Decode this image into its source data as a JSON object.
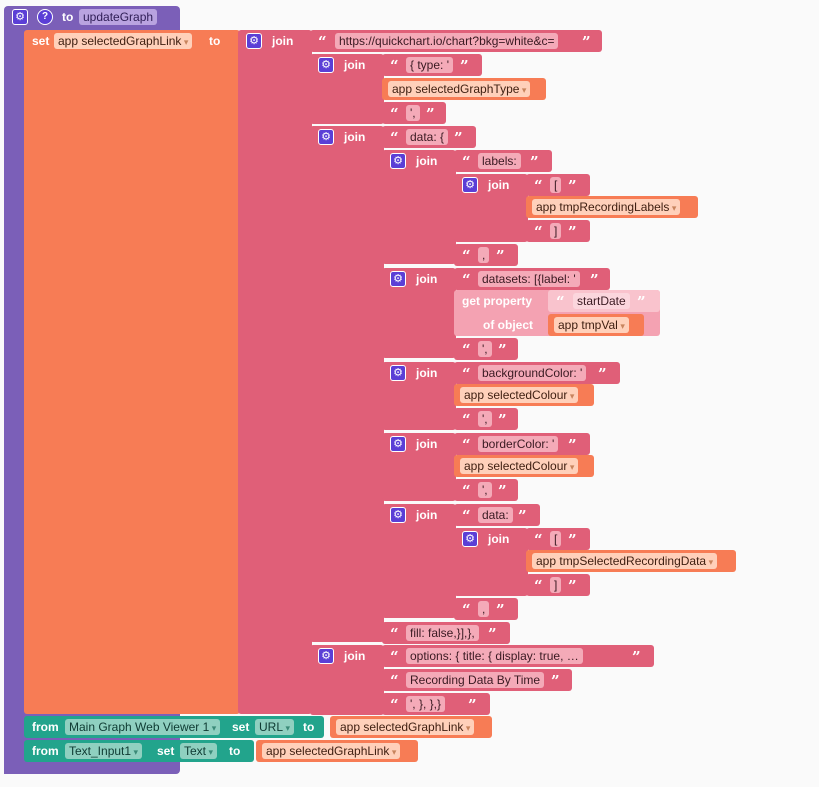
{
  "procedure": {
    "to_label": "to",
    "name": "updateGraph",
    "question_mark": "?"
  },
  "set_block": {
    "set_label": "set",
    "variable": "app selectedGraphLink",
    "to_label": "to"
  },
  "join_label": "join",
  "quote_open": "“",
  "quote_close": "”",
  "strings": {
    "url": "https://quickchart.io/chart?bkg=white&c=",
    "type_open": "{ type: '",
    "quote_comma": "',",
    "data_open": "data: {",
    "labels": "labels:",
    "bracket_open": "[",
    "bracket_close": "]",
    "comma": ",",
    "datasets": "datasets: [{label: '",
    "start_date": "startDate",
    "quote_comma_2": "',",
    "background_color": "backgroundColor: '",
    "quote_comma_3": "',",
    "border_color": "borderColor: '",
    "quote_comma_4": "',",
    "data_key": "data:",
    "bracket_open_2": "[",
    "bracket_close_2": "]",
    "comma_2": ",",
    "fill": "fill: false,}],},",
    "options": "options: {     title: {       display: true,     …",
    "title_text": "Recording Data By Time",
    "closing": "',    },  },}"
  },
  "getters": {
    "graph_type": "app selectedGraphType",
    "recording_labels": "app tmpRecordingLabels",
    "selected_colour_1": "app selectedColour",
    "selected_colour_2": "app selectedColour",
    "recording_data": "app tmpSelectedRecordingData",
    "tmp_val": "app tmpVal",
    "graph_link_1": "app selectedGraphLink",
    "graph_link_2": "app selectedGraphLink"
  },
  "get_property": {
    "label": "get property",
    "of_object": "of object"
  },
  "web_viewer_statement": {
    "from": "from",
    "component": "Main Graph Web Viewer 1",
    "set": "set",
    "property": "URL",
    "to": "to"
  },
  "text_input_statement": {
    "from": "from",
    "component": "Text_Input1",
    "set": "set",
    "property": "Text",
    "to": "to"
  },
  "colors": {
    "procedure": "#7b5fb8",
    "set_block": "#f77c55",
    "text_block": "#e05f78",
    "getter": "#f77c55",
    "component": "#22a48c",
    "get_property": "#f4a2b2"
  }
}
